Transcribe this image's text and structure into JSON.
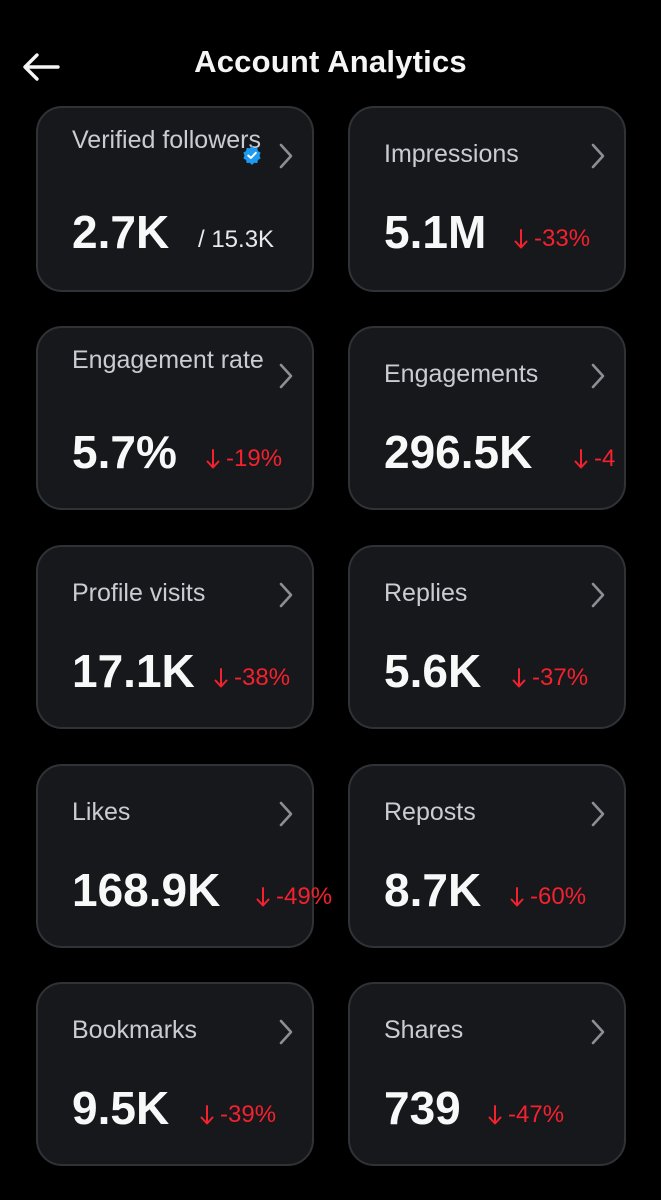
{
  "header": {
    "title": "Account Analytics",
    "back_icon": "arrow-left-icon"
  },
  "colors": {
    "background": "#000000",
    "card": "#16181c",
    "card_border": "#2f3336",
    "negative": "#f4212e",
    "verified": "#1d9bf0"
  },
  "metrics": {
    "verified_followers": {
      "label": "Verified followers",
      "value": "2.7K",
      "total": "/ 15.3K",
      "verified_icon": "verified-badge-icon"
    },
    "impressions": {
      "label": "Impressions",
      "value": "5.1M",
      "change": "-33%"
    },
    "engagement_rate": {
      "label": "Engagement rate",
      "value": "5.7%",
      "change": "-19%"
    },
    "engagements": {
      "label": "Engagements",
      "value": "296.5K",
      "change": "-4"
    },
    "profile_visits": {
      "label": "Profile visits",
      "value": "17.1K",
      "change": "-38%"
    },
    "replies": {
      "label": "Replies",
      "value": "5.6K",
      "change": "-37%"
    },
    "likes": {
      "label": "Likes",
      "value": "168.9K",
      "change": "-49%"
    },
    "reposts": {
      "label": "Reposts",
      "value": "8.7K",
      "change": "-60%"
    },
    "bookmarks": {
      "label": "Bookmarks",
      "value": "9.5K",
      "change": "-39%"
    },
    "shares": {
      "label": "Shares",
      "value": "739",
      "change": "-47%"
    }
  }
}
